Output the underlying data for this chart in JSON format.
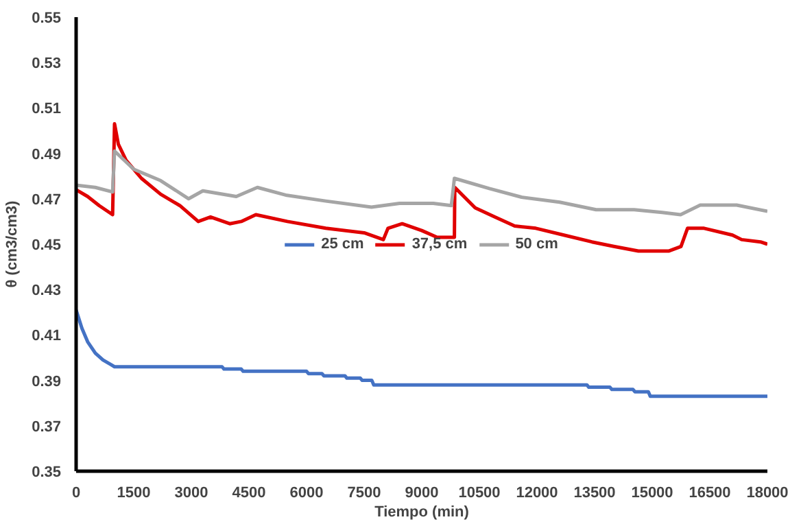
{
  "chart_data": {
    "type": "line",
    "xlabel": "Tiempo (min)",
    "ylabel": "θ (cm3/cm3)",
    "xlim": [
      0,
      18000
    ],
    "xticks": [
      0,
      1500,
      3000,
      4500,
      6000,
      7500,
      9000,
      10500,
      12000,
      13500,
      15000,
      16500,
      18000
    ],
    "ylim": [
      0.35,
      0.55
    ],
    "yticks": [
      0.35,
      0.37,
      0.39,
      0.41,
      0.43,
      0.45,
      0.47,
      0.49,
      0.51,
      0.53,
      0.55
    ],
    "grid": false,
    "legend": "center",
    "marker": "none",
    "line_style": "solid",
    "series": [
      {
        "name": "25 cm",
        "color": "#4472c4",
        "x": [
          0,
          150,
          300,
          500,
          700,
          900,
          1000,
          3800,
          3850,
          4300,
          4350,
          6000,
          6050,
          6400,
          6450,
          7000,
          7050,
          7400,
          7450,
          7700,
          7750,
          13300,
          13350,
          13900,
          13950,
          14500,
          14550,
          14900,
          14950,
          18000
        ],
        "values": [
          0.421,
          0.413,
          0.407,
          0.402,
          0.399,
          0.397,
          0.396,
          0.396,
          0.395,
          0.395,
          0.394,
          0.394,
          0.393,
          0.393,
          0.392,
          0.392,
          0.391,
          0.391,
          0.39,
          0.39,
          0.388,
          0.388,
          0.387,
          0.387,
          0.386,
          0.386,
          0.385,
          0.385,
          0.383,
          0.383
        ]
      },
      {
        "name": "37,5 cm",
        "color": "#e00000",
        "x": [
          0,
          300,
          600,
          950,
          1000,
          1100,
          1300,
          1700,
          2200,
          2700,
          3180,
          3500,
          4000,
          4300,
          4680,
          5500,
          6500,
          7500,
          8000,
          8120,
          8490,
          9000,
          9400,
          9850,
          9860,
          10390,
          10900,
          11420,
          11970,
          12700,
          13430,
          14000,
          14640,
          15440,
          15750,
          15920,
          16350,
          17090,
          17330,
          17820,
          18000
        ],
        "values": [
          0.474,
          0.471,
          0.467,
          0.463,
          0.503,
          0.494,
          0.487,
          0.479,
          0.472,
          0.467,
          0.46,
          0.462,
          0.459,
          0.46,
          0.463,
          0.46,
          0.457,
          0.455,
          0.452,
          0.457,
          0.459,
          0.456,
          0.453,
          0.453,
          0.475,
          0.466,
          0.462,
          0.458,
          0.457,
          0.454,
          0.451,
          0.449,
          0.447,
          0.447,
          0.449,
          0.457,
          0.457,
          0.454,
          0.452,
          0.451,
          0.45
        ]
      },
      {
        "name": "50 cm",
        "color": "#a5a5a5",
        "x": [
          0,
          500,
          950,
          1000,
          1500,
          2200,
          2930,
          3300,
          4170,
          4720,
          5490,
          6500,
          7690,
          8420,
          9300,
          9770,
          9850,
          10760,
          11600,
          12590,
          13540,
          14530,
          15260,
          15740,
          16250,
          17200,
          18000
        ],
        "values": [
          0.476,
          0.475,
          0.473,
          0.491,
          0.483,
          0.478,
          0.47,
          0.4735,
          0.471,
          0.475,
          0.4715,
          0.469,
          0.4663,
          0.468,
          0.468,
          0.467,
          0.479,
          0.4745,
          0.4707,
          0.4685,
          0.4652,
          0.4652,
          0.464,
          0.463,
          0.4672,
          0.4672,
          0.4645
        ]
      }
    ]
  }
}
